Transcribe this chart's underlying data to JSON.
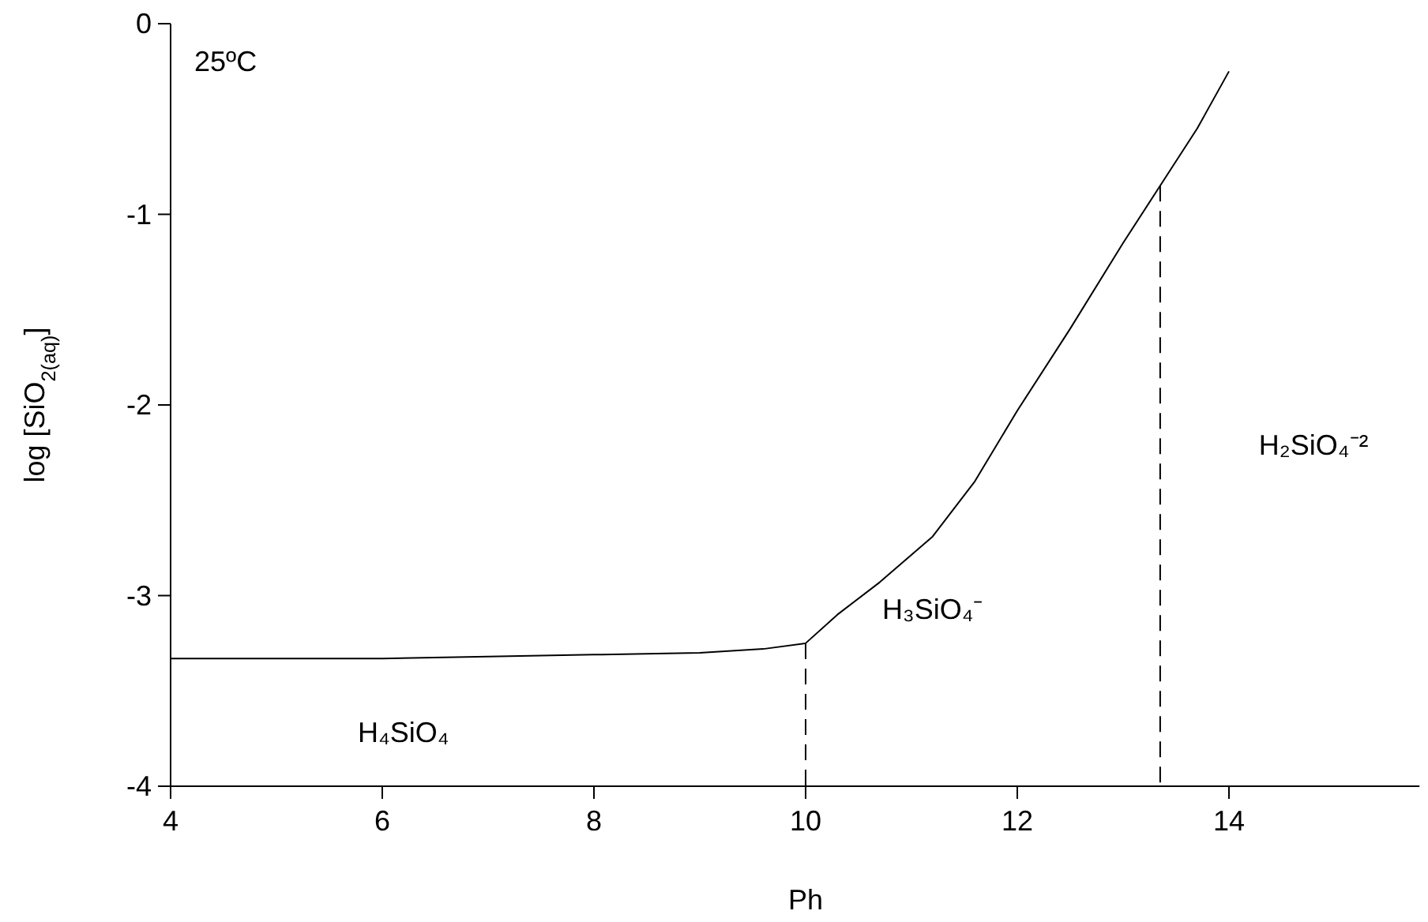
{
  "chart_data": {
    "type": "line",
    "xlabel": "Ph",
    "ylabel": "log [SiO$_{2(aq)}$]",
    "xlim": [
      4,
      15.8
    ],
    "xticks": [
      4,
      6,
      8,
      10,
      12,
      14
    ],
    "ylim": [
      -4,
      0
    ],
    "yticks": [
      0,
      -1,
      -2,
      -3,
      -4
    ],
    "grid": false,
    "series": [
      {
        "color": "#000000",
        "x": [
          4,
          6,
          7,
          8,
          9,
          9.6,
          10,
          10.3,
          10.7,
          11.2,
          11.6,
          12,
          12.5,
          13,
          13.35,
          13.7,
          14
        ],
        "values": [
          -3.33,
          -3.33,
          -3.32,
          -3.31,
          -3.3,
          -3.28,
          -3.25,
          -3.1,
          -2.93,
          -2.69,
          -2.4,
          -2.03,
          -1.6,
          -1.15,
          -0.85,
          -0.55,
          -0.25
        ],
        "line_style": "solid"
      },
      {
        "color": "#000000",
        "x": [
          10,
          10
        ],
        "values": [
          -3.25,
          -4
        ],
        "line_style": "dashed"
      },
      {
        "color": "#000000",
        "x": [
          13.35,
          13.35
        ],
        "values": [
          -0.85,
          -4
        ],
        "line_style": "dashed"
      }
    ],
    "annotations": [
      "25ºC",
      "H₄SiO₄",
      "H₃SiO₄⁻",
      "H₂SiO₄⁻²"
    ]
  }
}
